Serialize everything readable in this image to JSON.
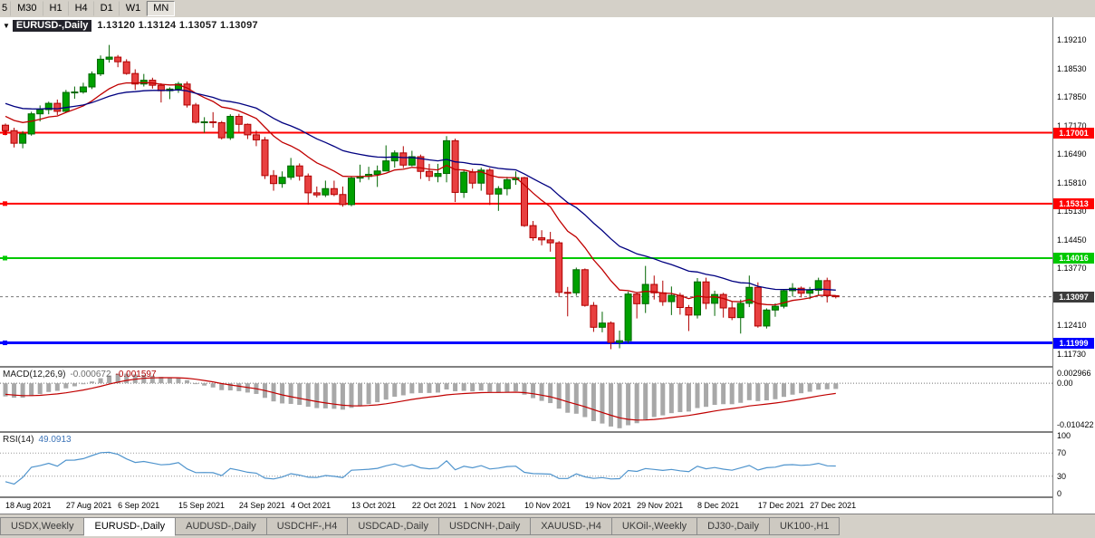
{
  "toolbar": {
    "timeframe_buttons": [
      {
        "label": "5",
        "state": "partial"
      },
      {
        "label": "M30",
        "state": "normal"
      },
      {
        "label": "H1",
        "state": "normal"
      },
      {
        "label": "H4",
        "state": "normal"
      },
      {
        "label": "D1",
        "state": "normal"
      },
      {
        "label": "W1",
        "state": "normal"
      },
      {
        "label": "MN",
        "state": "pressed"
      }
    ]
  },
  "chart_header": {
    "collapse_arrow": "▼",
    "symbol": "EURUSD-,Daily",
    "open": "1.13120",
    "high": "1.13124",
    "low": "1.13057",
    "close": "1.13097",
    "ohlc_text": "1.13120 1.13124 1.13057 1.13097"
  },
  "price_axis": {
    "labels": [
      "1.19210",
      "1.18530",
      "1.17850",
      "1.17170",
      "1.16490",
      "1.15810",
      "1.15130",
      "1.14450",
      "1.13770",
      "1.13090",
      "1.12410",
      "1.11730"
    ]
  },
  "macd_panel": {
    "title": "MACD(12,26,9)",
    "value_main": "-0.000672",
    "value_signal": "-0.001597",
    "axis_labels": [
      "0.002966",
      "0.00",
      "-0.010422"
    ],
    "range": {
      "max": 0.002966,
      "min": -0.010422
    }
  },
  "rsi_panel": {
    "title": "RSI(14)",
    "value": "49.0913",
    "axis_labels": [
      "100",
      "70",
      "30",
      "0"
    ],
    "levels": [
      70,
      30
    ]
  },
  "date_axis": {
    "labels": [
      {
        "text": "18 Aug 2021",
        "candle_index": 0
      },
      {
        "text": "27 Aug 2021",
        "candle_index": 7
      },
      {
        "text": "6 Sep 2021",
        "candle_index": 13
      },
      {
        "text": "15 Sep 2021",
        "candle_index": 20
      },
      {
        "text": "24 Sep 2021",
        "candle_index": 27
      },
      {
        "text": "4 Oct 2021",
        "candle_index": 33
      },
      {
        "text": "13 Oct 2021",
        "candle_index": 40
      },
      {
        "text": "22 Oct 2021",
        "candle_index": 47
      },
      {
        "text": "1 Nov 2021",
        "candle_index": 53
      },
      {
        "text": "10 Nov 2021",
        "candle_index": 60
      },
      {
        "text": "19 Nov 2021",
        "candle_index": 67
      },
      {
        "text": "29 Nov 2021",
        "candle_index": 73
      },
      {
        "text": "8 Dec 2021",
        "candle_index": 80
      },
      {
        "text": "17 Dec 2021",
        "candle_index": 87
      },
      {
        "text": "27 Dec 2021",
        "candle_index": 93
      }
    ]
  },
  "tabs": [
    {
      "label": "USDX,Weekly",
      "active": false
    },
    {
      "label": "EURUSD-,Daily",
      "active": true
    },
    {
      "label": "AUDUSD-,Daily",
      "active": false
    },
    {
      "label": "USDCHF-,H4",
      "active": false
    },
    {
      "label": "USDCAD-,Daily",
      "active": false
    },
    {
      "label": "USDCNH-,Daily",
      "active": false
    },
    {
      "label": "XAUUSD-,H4",
      "active": false
    },
    {
      "label": "UKOil-,Weekly",
      "active": false
    },
    {
      "label": "DJ30-,Daily",
      "active": false
    },
    {
      "label": "UK100-,H1",
      "active": false
    }
  ],
  "colors": {
    "bull": "#00A000",
    "bull_border": "#006600",
    "bear": "#E84040",
    "bear_border": "#B00000",
    "ma_fast": "#C00000",
    "ma_slow": "#000080",
    "macd_hist": "#A8A8A8",
    "macd_signal": "#C00000",
    "rsi_line": "#4F94CD"
  },
  "chart_data": {
    "type": "candlestick",
    "symbol": "EURUSD-",
    "timeframe": "Daily",
    "price_range_visible": [
      1.1145,
      1.1975
    ],
    "hlines": [
      {
        "value": 1.17001,
        "label": "1.17001",
        "color": "#FF0000",
        "width": 2
      },
      {
        "value": 1.15313,
        "label": "1.15313",
        "color": "#FF0000",
        "width": 2
      },
      {
        "value": 1.14016,
        "label": "1.14016",
        "color": "#00C800",
        "width": 2
      },
      {
        "value": 1.11999,
        "label": "1.11999",
        "color": "#0000FF",
        "width": 3
      }
    ],
    "current_price": {
      "value": 1.13097,
      "label": "1.13097",
      "tag_color": "#3C3C3C"
    },
    "prehistory_closes": [
      1.1852,
      1.1843,
      1.183,
      1.1822,
      1.1836,
      1.1845,
      1.1858,
      1.1862,
      1.185,
      1.1841,
      1.1832,
      1.182,
      1.1808,
      1.1798,
      1.1786,
      1.1775,
      1.1782,
      1.179,
      1.1779,
      1.1768,
      1.1757,
      1.1762,
      1.1773,
      1.1765,
      1.1752,
      1.174,
      1.1731,
      1.1722,
      1.1715,
      1.171
    ],
    "candles": [
      [
        1.1718,
        1.1722,
        1.1694,
        1.1705
      ],
      [
        1.1705,
        1.1712,
        1.1665,
        1.1675
      ],
      [
        1.1675,
        1.1704,
        1.1663,
        1.1697
      ],
      [
        1.1697,
        1.175,
        1.1693,
        1.1745
      ],
      [
        1.1745,
        1.1765,
        1.1727,
        1.1755
      ],
      [
        1.1755,
        1.1774,
        1.1744,
        1.177
      ],
      [
        1.177,
        1.1779,
        1.1742,
        1.1751
      ],
      [
        1.1751,
        1.1802,
        1.1748,
        1.1796
      ],
      [
        1.1796,
        1.181,
        1.1781,
        1.1797
      ],
      [
        1.1797,
        1.1819,
        1.1793,
        1.1809
      ],
      [
        1.1809,
        1.1846,
        1.1804,
        1.184
      ],
      [
        1.184,
        1.1884,
        1.1835,
        1.1875
      ],
      [
        1.1875,
        1.1909,
        1.1867,
        1.188
      ],
      [
        1.188,
        1.1885,
        1.1856,
        1.1869
      ],
      [
        1.1869,
        1.1875,
        1.1838,
        1.1841
      ],
      [
        1.1841,
        1.1851,
        1.1802,
        1.1816
      ],
      [
        1.1816,
        1.184,
        1.181,
        1.1825
      ],
      [
        1.1825,
        1.1831,
        1.1805,
        1.1813
      ],
      [
        1.1813,
        1.1818,
        1.1772,
        1.18
      ],
      [
        1.18,
        1.1808,
        1.178,
        1.1804
      ],
      [
        1.1804,
        1.1821,
        1.1795,
        1.1816
      ],
      [
        1.1816,
        1.1822,
        1.176,
        1.1766
      ],
      [
        1.1766,
        1.1771,
        1.1722,
        1.1725
      ],
      [
        1.1725,
        1.1737,
        1.17,
        1.1726
      ],
      [
        1.1726,
        1.1749,
        1.1712,
        1.1724
      ],
      [
        1.1724,
        1.1728,
        1.1684,
        1.1688
      ],
      [
        1.1688,
        1.1744,
        1.1683,
        1.1739
      ],
      [
        1.1739,
        1.1745,
        1.1701,
        1.172
      ],
      [
        1.172,
        1.1722,
        1.1685,
        1.1695
      ],
      [
        1.1695,
        1.1705,
        1.1668,
        1.1683
      ],
      [
        1.1683,
        1.169,
        1.159,
        1.1598
      ],
      [
        1.1598,
        1.1611,
        1.1562,
        1.1579
      ],
      [
        1.1579,
        1.1608,
        1.1569,
        1.1594
      ],
      [
        1.1594,
        1.164,
        1.1588,
        1.1621
      ],
      [
        1.1621,
        1.1627,
        1.1586,
        1.1597
      ],
      [
        1.1597,
        1.1603,
        1.1529,
        1.1557
      ],
      [
        1.1557,
        1.1572,
        1.1546,
        1.1552
      ],
      [
        1.1552,
        1.1586,
        1.1547,
        1.1567
      ],
      [
        1.1567,
        1.1586,
        1.1549,
        1.1553
      ],
      [
        1.1553,
        1.1572,
        1.1524,
        1.1529
      ],
      [
        1.1529,
        1.1597,
        1.1525,
        1.1592
      ],
      [
        1.1592,
        1.1624,
        1.1582,
        1.1596
      ],
      [
        1.1596,
        1.1619,
        1.1588,
        1.1601
      ],
      [
        1.1601,
        1.1622,
        1.1571,
        1.1609
      ],
      [
        1.1609,
        1.167,
        1.1609,
        1.1633
      ],
      [
        1.1633,
        1.1658,
        1.1617,
        1.1652
      ],
      [
        1.1652,
        1.1668,
        1.1616,
        1.1623
      ],
      [
        1.1623,
        1.1657,
        1.162,
        1.1643
      ],
      [
        1.1643,
        1.1648,
        1.159,
        1.1608
      ],
      [
        1.1608,
        1.1626,
        1.1585,
        1.1596
      ],
      [
        1.1596,
        1.1626,
        1.1582,
        1.1603
      ],
      [
        1.1603,
        1.1692,
        1.1582,
        1.1681
      ],
      [
        1.1681,
        1.1686,
        1.1535,
        1.1558
      ],
      [
        1.1558,
        1.161,
        1.1545,
        1.1606
      ],
      [
        1.1606,
        1.1614,
        1.1567,
        1.158
      ],
      [
        1.158,
        1.1617,
        1.1562,
        1.1611
      ],
      [
        1.1611,
        1.1616,
        1.1528,
        1.1554
      ],
      [
        1.1554,
        1.1573,
        1.1514,
        1.1567
      ],
      [
        1.1567,
        1.1595,
        1.1551,
        1.1588
      ],
      [
        1.1588,
        1.1608,
        1.1576,
        1.1593
      ],
      [
        1.1593,
        1.1595,
        1.1476,
        1.1479
      ],
      [
        1.1479,
        1.149,
        1.1443,
        1.145
      ],
      [
        1.145,
        1.1468,
        1.1432,
        1.1445
      ],
      [
        1.1445,
        1.1464,
        1.1417,
        1.1438
      ],
      [
        1.1438,
        1.1442,
        1.1309,
        1.132
      ],
      [
        1.132,
        1.1333,
        1.1263,
        1.1319
      ],
      [
        1.1319,
        1.1379,
        1.1312,
        1.1374
      ],
      [
        1.1374,
        1.1377,
        1.1286,
        1.1289
      ],
      [
        1.1289,
        1.1297,
        1.1226,
        1.1237
      ],
      [
        1.1237,
        1.1274,
        1.1225,
        1.1247
      ],
      [
        1.1247,
        1.1251,
        1.1185,
        1.1201
      ],
      [
        1.1201,
        1.1229,
        1.1187,
        1.1205
      ],
      [
        1.1205,
        1.1322,
        1.1199,
        1.1316
      ],
      [
        1.1316,
        1.1321,
        1.1258,
        1.1293
      ],
      [
        1.1293,
        1.1383,
        1.1271,
        1.1339
      ],
      [
        1.1339,
        1.136,
        1.1303,
        1.1319
      ],
      [
        1.1319,
        1.1348,
        1.1288,
        1.1298
      ],
      [
        1.1298,
        1.1334,
        1.1266,
        1.1313
      ],
      [
        1.1313,
        1.1319,
        1.1267,
        1.1284
      ],
      [
        1.1284,
        1.129,
        1.1228,
        1.1266
      ],
      [
        1.1266,
        1.1354,
        1.1258,
        1.1345
      ],
      [
        1.1345,
        1.1355,
        1.128,
        1.1294
      ],
      [
        1.1294,
        1.1324,
        1.1264,
        1.1315
      ],
      [
        1.1315,
        1.1319,
        1.126,
        1.1283
      ],
      [
        1.1283,
        1.1298,
        1.1254,
        1.126
      ],
      [
        1.126,
        1.1303,
        1.1222,
        1.1294
      ],
      [
        1.1294,
        1.136,
        1.1285,
        1.1332
      ],
      [
        1.1332,
        1.1344,
        1.1236,
        1.124
      ],
      [
        1.124,
        1.1282,
        1.1234,
        1.1278
      ],
      [
        1.1278,
        1.1294,
        1.1262,
        1.1287
      ],
      [
        1.1287,
        1.1327,
        1.1282,
        1.1324
      ],
      [
        1.1324,
        1.1342,
        1.131,
        1.133
      ],
      [
        1.133,
        1.1334,
        1.1308,
        1.1318
      ],
      [
        1.1318,
        1.1333,
        1.1304,
        1.1325
      ],
      [
        1.1325,
        1.1355,
        1.1312,
        1.1348
      ],
      [
        1.1348,
        1.1355,
        1.1296,
        1.1312
      ],
      [
        1.1312,
        1.13124,
        1.13057,
        1.13097
      ]
    ]
  }
}
